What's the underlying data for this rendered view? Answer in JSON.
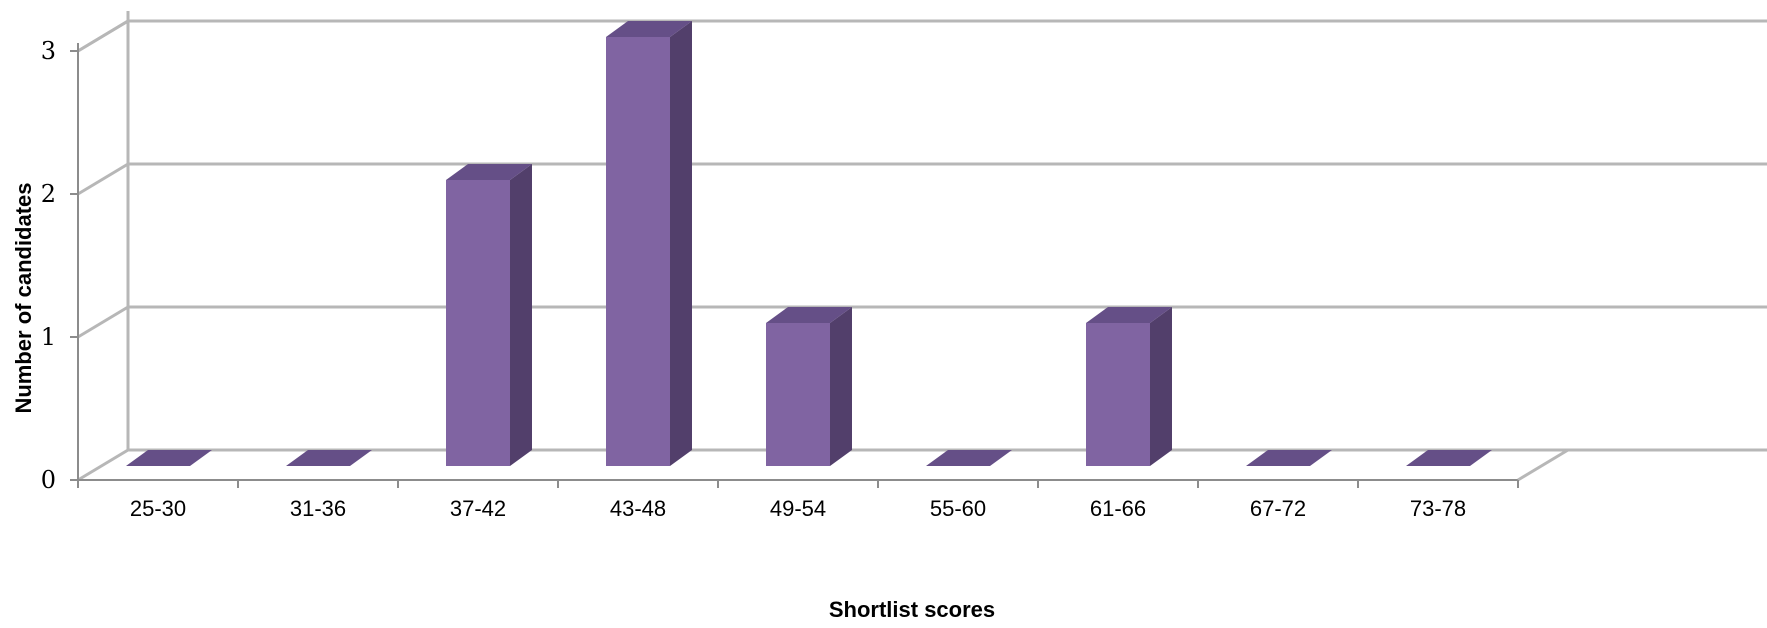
{
  "chart_data": {
    "type": "bar",
    "style": "3d-column",
    "title": "",
    "xlabel": "Shortlist scores",
    "ylabel": "Number of candidates",
    "categories": [
      "25-30",
      "31-36",
      "37-42",
      "43-48",
      "49-54",
      "55-60",
      "61-66",
      "67-72",
      "73-78"
    ],
    "values": [
      0,
      0,
      2,
      3,
      1,
      0,
      1,
      0,
      0
    ],
    "ylim": [
      0,
      3
    ],
    "yticks": [
      "0",
      "1",
      "2",
      "3"
    ],
    "grid": true,
    "legend": "none",
    "colors": {
      "bar_front": "#8064a2",
      "bar_side": "#523f6b",
      "bar_top": "#654f87",
      "grid": "#b7b7b7",
      "axis": "#8c8c8c"
    }
  }
}
